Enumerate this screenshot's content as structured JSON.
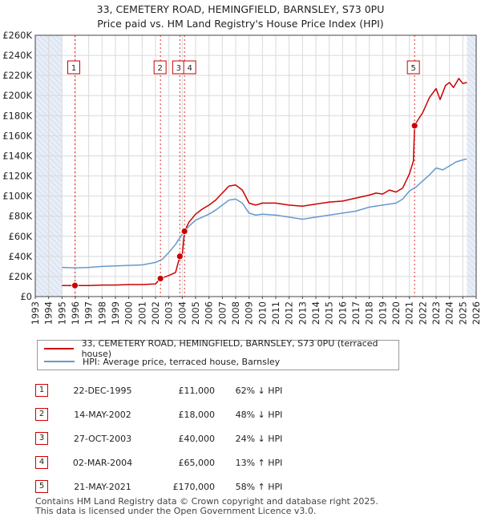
{
  "title_line1": "33, CEMETERY ROAD, HEMINGFIELD, BARNSLEY, S73 0PU",
  "title_line2": "Price paid vs. HM Land Registry's House Price Index (HPI)",
  "legend": {
    "property_label": "33, CEMETERY ROAD, HEMINGFIELD, BARNSLEY, S73 0PU (terraced house)",
    "hpi_label": "HPI: Average price, terraced house, Barnsley"
  },
  "colors": {
    "property": "#cc0000",
    "hpi": "#6699cc",
    "shade": "#e8eef7",
    "grid": "#d9d9d9"
  },
  "sales": [
    {
      "num": "1",
      "date": "22-DEC-1995",
      "price": "£11,000",
      "hpi": "62% ↓ HPI"
    },
    {
      "num": "2",
      "date": "14-MAY-2002",
      "price": "£18,000",
      "hpi": "48% ↓ HPI"
    },
    {
      "num": "3",
      "date": "27-OCT-2003",
      "price": "£40,000",
      "hpi": "24% ↓ HPI"
    },
    {
      "num": "4",
      "date": "02-MAR-2004",
      "price": "£65,000",
      "hpi": "13% ↑ HPI"
    },
    {
      "num": "5",
      "date": "21-MAY-2021",
      "price": "£170,000",
      "hpi": "58% ↑ HPI"
    }
  ],
  "footer": {
    "line1": "Contains HM Land Registry data © Crown copyright and database right 2025.",
    "line2": "This data is licensed under the Open Government Licence v3.0."
  },
  "chart_data": {
    "type": "line",
    "xlim": [
      1993,
      2026
    ],
    "ylim": [
      0,
      260000
    ],
    "y_ticks": [
      0,
      20000,
      40000,
      60000,
      80000,
      100000,
      120000,
      140000,
      160000,
      180000,
      200000,
      220000,
      240000,
      260000
    ],
    "y_tick_labels": [
      "£0",
      "£20K",
      "£40K",
      "£60K",
      "£80K",
      "£100K",
      "£120K",
      "£140K",
      "£160K",
      "£180K",
      "£200K",
      "£220K",
      "£240K",
      "£260K"
    ],
    "x_ticks": [
      "1993",
      "1994",
      "1995",
      "1996",
      "1997",
      "1998",
      "1999",
      "2000",
      "2001",
      "2002",
      "2003",
      "2004",
      "2005",
      "2006",
      "2007",
      "2008",
      "2009",
      "2010",
      "2011",
      "2012",
      "2013",
      "2014",
      "2015",
      "2016",
      "2017",
      "2018",
      "2019",
      "2020",
      "2021",
      "2022",
      "2023",
      "2024",
      "2025",
      "2026"
    ],
    "shaded_ranges": [
      [
        1993,
        1995.0
      ],
      [
        2025.3,
        2026
      ]
    ],
    "sale_points": [
      {
        "label": "1",
        "x": 1995.97,
        "y": 11000
      },
      {
        "label": "2",
        "x": 2002.37,
        "y": 18000
      },
      {
        "label": "3",
        "x": 2003.82,
        "y": 40000
      },
      {
        "label": "4",
        "x": 2004.17,
        "y": 65000
      },
      {
        "label": "5",
        "x": 2021.39,
        "y": 170000
      }
    ],
    "series": [
      {
        "name": "33, CEMETERY ROAD, HEMINGFIELD, BARNSLEY, S73 0PU (terraced house)",
        "x": [
          1995.0,
          1995.97,
          1996.5,
          1997,
          1998,
          1999,
          2000,
          2001,
          2002.0,
          2002.37,
          2002.6,
          2003,
          2003.5,
          2003.82,
          2004.0,
          2004.17,
          2004.5,
          2005,
          2005.5,
          2006,
          2006.5,
          2007,
          2007.5,
          2008,
          2008.5,
          2009,
          2009.5,
          2010,
          2011,
          2012,
          2013,
          2014,
          2015,
          2016,
          2017,
          2018,
          2018.5,
          2019,
          2019.5,
          2020,
          2020.5,
          2021.0,
          2021.3,
          2021.39,
          2021.6,
          2022,
          2022.5,
          2023,
          2023.3,
          2023.7,
          2024,
          2024.3,
          2024.7,
          2025.0,
          2025.3
        ],
        "y": [
          11000,
          11000,
          11000,
          11000,
          11500,
          11500,
          12000,
          12000,
          12500,
          18000,
          19000,
          21000,
          24000,
          40000,
          41000,
          65000,
          74000,
          82000,
          87000,
          91000,
          96000,
          103000,
          110000,
          111000,
          106000,
          93000,
          91000,
          93000,
          93000,
          91000,
          90000,
          92000,
          94000,
          95000,
          98000,
          101000,
          103000,
          102000,
          106000,
          104000,
          108000,
          122000,
          135000,
          170000,
          175000,
          183000,
          198000,
          207000,
          196000,
          210000,
          213000,
          208000,
          217000,
          212000,
          213000
        ]
      },
      {
        "name": "HPI: Average price, terraced house, Barnsley",
        "x": [
          1995.0,
          1996,
          1997,
          1998,
          1999,
          2000,
          2001,
          2002,
          2002.5,
          2003,
          2003.5,
          2004,
          2004.5,
          2005,
          2005.5,
          2006,
          2006.5,
          2007,
          2007.5,
          2008,
          2008.5,
          2009,
          2009.5,
          2010,
          2011,
          2012,
          2013,
          2014,
          2015,
          2016,
          2017,
          2018,
          2019,
          2020,
          2020.5,
          2021,
          2021.5,
          2022,
          2022.5,
          2023,
          2023.5,
          2024,
          2024.5,
          2025,
          2025.3
        ],
        "y": [
          29000,
          28500,
          29000,
          30000,
          30500,
          31000,
          31500,
          34000,
          37000,
          44000,
          52000,
          62000,
          70000,
          76000,
          79000,
          82000,
          86000,
          91000,
          96000,
          97000,
          93000,
          83000,
          81000,
          82000,
          81000,
          79000,
          77000,
          79000,
          81000,
          83000,
          85000,
          89000,
          91000,
          93000,
          97000,
          105000,
          109000,
          115000,
          121000,
          128000,
          126000,
          130000,
          134000,
          136000,
          137000
        ]
      }
    ]
  }
}
